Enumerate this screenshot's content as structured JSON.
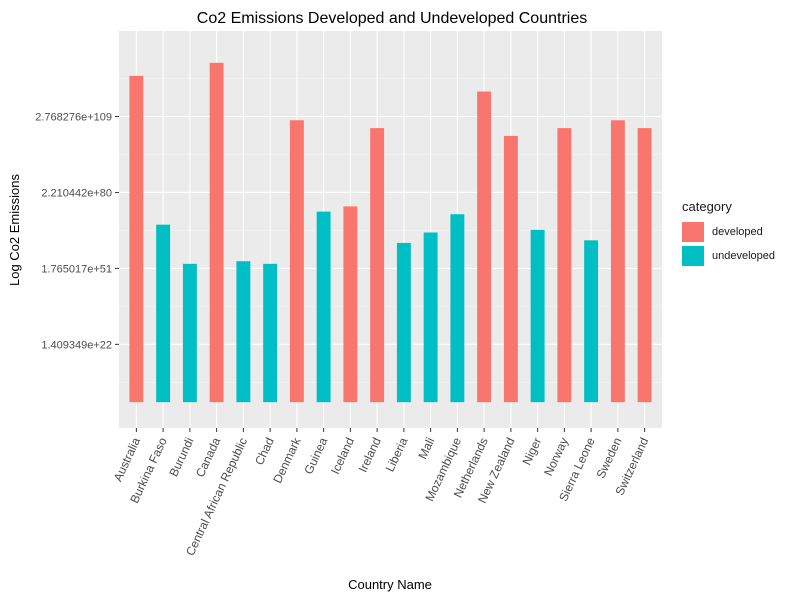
{
  "chart_data": {
    "type": "bar",
    "title": "Co2 Emissions Developed and Undeveloped Countries",
    "xlabel": "Country Name",
    "ylabel": "Log Co2 Emissions",
    "y_scale": "log",
    "y_tick_labels": [
      "1.409349e+22",
      "1.765017e+51",
      "2.210442e+80",
      "2.768276e+109"
    ],
    "y_tick_exponents": [
      22.149,
      51.247,
      80.344,
      109.442
    ],
    "ylim_exponent": [
      -9.9,
      142.2
    ],
    "grid": true,
    "legend": {
      "title": "category",
      "position": "right",
      "entries": [
        {
          "label": "developed",
          "color": "#F8766D"
        },
        {
          "label": "undeveloped",
          "color": "#00BFC4"
        }
      ]
    },
    "categories": [
      "Australia",
      "Burkina Faso",
      "Burundi",
      "Canada",
      "Central African Republic",
      "Chad",
      "Denmark",
      "Guinea",
      "Iceland",
      "Ireland",
      "Liberia",
      "Mali",
      "Mozambique",
      "Netherlands",
      "New Zealand",
      "Niger",
      "Norway",
      "Sierra Leone",
      "Sweden",
      "Switzerland"
    ],
    "bars": [
      {
        "country": "Australia",
        "category": "developed",
        "log10_value": 125
      },
      {
        "country": "Burkina Faso",
        "category": "undeveloped",
        "log10_value": 68
      },
      {
        "country": "Burundi",
        "category": "undeveloped",
        "log10_value": 53
      },
      {
        "country": "Canada",
        "category": "developed",
        "log10_value": 130
      },
      {
        "country": "Central African Republic",
        "category": "undeveloped",
        "log10_value": 54
      },
      {
        "country": "Chad",
        "category": "undeveloped",
        "log10_value": 53
      },
      {
        "country": "Denmark",
        "category": "developed",
        "log10_value": 108
      },
      {
        "country": "Guinea",
        "category": "undeveloped",
        "log10_value": 73
      },
      {
        "country": "Iceland",
        "category": "developed",
        "log10_value": 75
      },
      {
        "country": "Ireland",
        "category": "developed",
        "log10_value": 105
      },
      {
        "country": "Liberia",
        "category": "undeveloped",
        "log10_value": 61
      },
      {
        "country": "Mali",
        "category": "undeveloped",
        "log10_value": 65
      },
      {
        "country": "Mozambique",
        "category": "undeveloped",
        "log10_value": 72
      },
      {
        "country": "Netherlands",
        "category": "developed",
        "log10_value": 119
      },
      {
        "country": "New Zealand",
        "category": "developed",
        "log10_value": 102
      },
      {
        "country": "Niger",
        "category": "undeveloped",
        "log10_value": 66
      },
      {
        "country": "Norway",
        "category": "developed",
        "log10_value": 105
      },
      {
        "country": "Sierra Leone",
        "category": "undeveloped",
        "log10_value": 62
      },
      {
        "country": "Sweden",
        "category": "developed",
        "log10_value": 108
      },
      {
        "country": "Switzerland",
        "category": "developed",
        "log10_value": 105
      }
    ]
  }
}
